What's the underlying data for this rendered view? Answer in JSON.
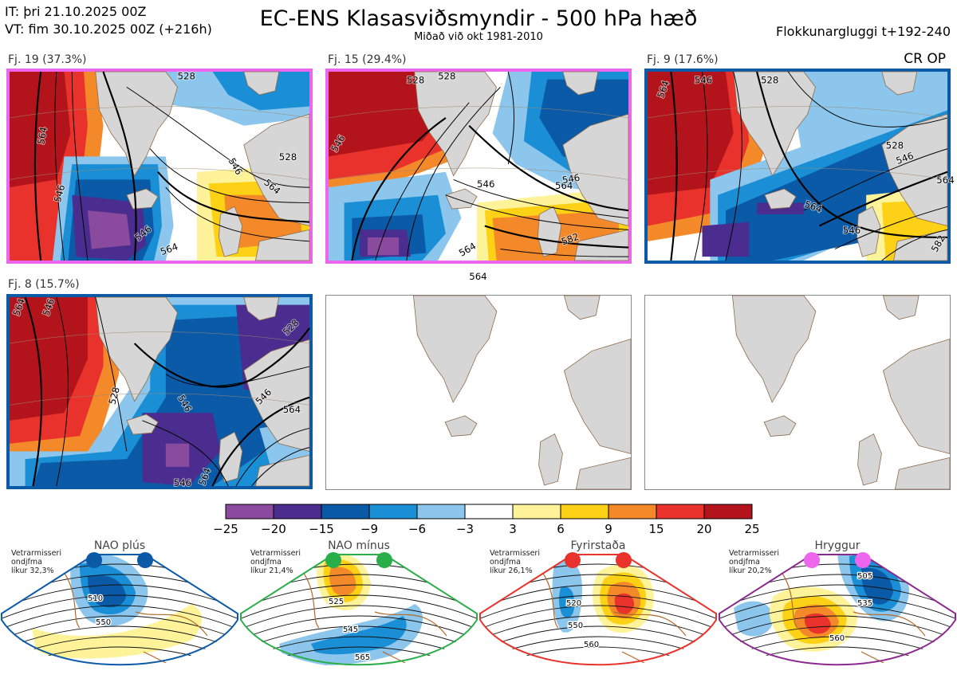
{
  "header": {
    "it_line": "IT: þri 21.10.2025 00Z",
    "vt_line": "VT: fim 30.10.2025 00Z  (+216h)",
    "title": "EC-ENS Klasasviðsmyndir - 500 hPa hæð",
    "subtitle": "Miðað við okt 1981-2010",
    "window": "Flokkunargluggi t+192-240",
    "cr_op": "CR OP"
  },
  "panels": [
    {
      "label": "Fj. 19 (37.3%)",
      "border_color": "#ee66ee",
      "contours": [
        "564",
        "546",
        "528",
        "528",
        "546",
        "564",
        "546",
        "564"
      ]
    },
    {
      "label": "Fj. 15 (29.4%)",
      "border_color": "#ee66ee",
      "contours": [
        "546",
        "528",
        "528",
        "546",
        "564",
        "546",
        "564",
        "582",
        "564"
      ]
    },
    {
      "label": "Fj. 9 (17.6%)",
      "border_color": "#0b5aa8",
      "contours": [
        "564",
        "546",
        "528",
        "528",
        "546",
        "564",
        "546",
        "582",
        "564"
      ]
    },
    {
      "label": "Fj. 8 (15.7%)",
      "border_color": "#0b5aa8",
      "contours": [
        "564",
        "546",
        "528",
        "546",
        "528",
        "546",
        "564",
        "546",
        "564"
      ]
    },
    {
      "label": "",
      "border_color": "",
      "contours": []
    },
    {
      "label": "",
      "border_color": "",
      "contours": []
    }
  ],
  "colorbar": {
    "ticks": [
      "−25",
      "−20",
      "−15",
      "−9",
      "−6",
      "−3",
      "3",
      "6",
      "9",
      "15",
      "20",
      "25"
    ],
    "colors": [
      "#8a4a9e",
      "#4a2d8e",
      "#0b5aa8",
      "#1a8fd6",
      "#8cc6ec",
      "#ffffff",
      "#fff39a",
      "#fcd116",
      "#f4892a",
      "#e8322b",
      "#b3141b"
    ]
  },
  "regimes": [
    {
      "name": "NAO plús",
      "stat1": "Vetrarmisseri",
      "stat2": "ondjfma",
      "stat3": "líkur 32,3%",
      "color": "#0b5aa8",
      "contour_labels": [
        "510",
        "550"
      ]
    },
    {
      "name": "NAO mínus",
      "stat1": "Vetrarmisseri",
      "stat2": "ondjfma",
      "stat3": "líkur 21,4%",
      "color": "#2aae4a",
      "contour_labels": [
        "525",
        "545",
        "565"
      ]
    },
    {
      "name": "Fyrirstaða",
      "stat1": "Vetrarmisseri",
      "stat2": "ondjfma",
      "stat3": "líkur 26,1%",
      "color": "#e8322b",
      "contour_labels": [
        "520",
        "550",
        "560"
      ]
    },
    {
      "name": "Hryggur",
      "stat1": "Vetrarmisseri",
      "stat2": "ondjfma",
      "stat3": "líkur 20,2%",
      "color": "#8b2a8e",
      "contour_labels": [
        "505",
        "535",
        "560"
      ]
    }
  ]
}
